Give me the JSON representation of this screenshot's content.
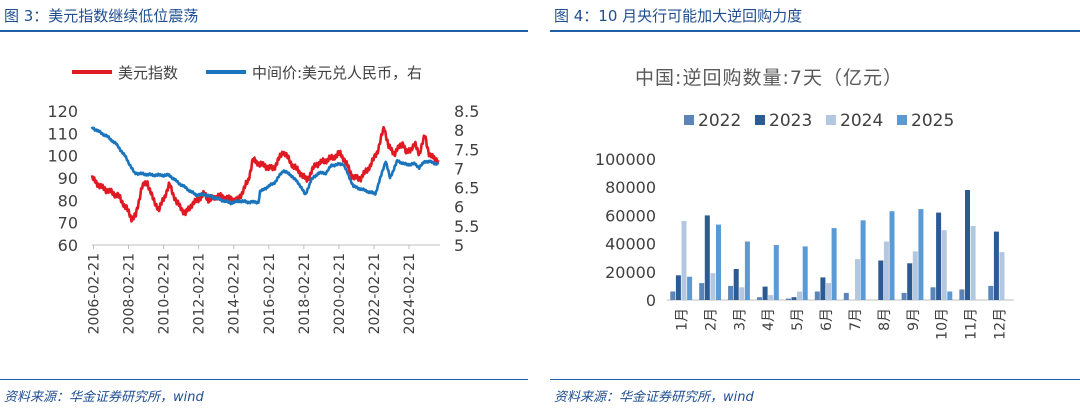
{
  "left": {
    "title": "图 3：美元指数继续低位震荡",
    "source": "资料来源：华金证券研究所，wind",
    "chart_data": {
      "type": "line",
      "legend_position": "top",
      "series": [
        {
          "name": "美元指数",
          "axis": "left",
          "color": "#e01a22",
          "points": [
            [
              "2006-01",
              90
            ],
            [
              "2006-07",
              86
            ],
            [
              "2007-01",
              84
            ],
            [
              "2007-07",
              82
            ],
            [
              "2008-01",
              76
            ],
            [
              "2008-04",
              72
            ],
            [
              "2008-07",
              73
            ],
            [
              "2008-11",
              86
            ],
            [
              "2009-03",
              88
            ],
            [
              "2009-07",
              80
            ],
            [
              "2009-11",
              76
            ],
            [
              "2010-06",
              87
            ],
            [
              "2010-11",
              79
            ],
            [
              "2011-05",
              74
            ],
            [
              "2011-09",
              78
            ],
            [
              "2012-01",
              80
            ],
            [
              "2012-06",
              83
            ],
            [
              "2012-09",
              80
            ],
            [
              "2013-03",
              82
            ],
            [
              "2013-09",
              81
            ],
            [
              "2014-05",
              80
            ],
            [
              "2014-12",
              89
            ],
            [
              "2015-03",
              98
            ],
            [
              "2015-09",
              96
            ],
            [
              "2016-05",
              94
            ],
            [
              "2016-12",
              102
            ],
            [
              "2017-06",
              96
            ],
            [
              "2017-12",
              92
            ],
            [
              "2018-04",
              89
            ],
            [
              "2018-10",
              96
            ],
            [
              "2019-09",
              99
            ],
            [
              "2020-03",
              101
            ],
            [
              "2020-05",
              99
            ],
            [
              "2020-12",
              90
            ],
            [
              "2021-05",
              90
            ],
            [
              "2021-12",
              96
            ],
            [
              "2022-05",
              103
            ],
            [
              "2022-09",
              113
            ],
            [
              "2022-12",
              104
            ],
            [
              "2023-04",
              101
            ],
            [
              "2023-10",
              106
            ],
            [
              "2023-12",
              101
            ],
            [
              "2024-06",
              105
            ],
            [
              "2024-09",
              101
            ],
            [
              "2025-01",
              109
            ],
            [
              "2025-04",
              100
            ],
            [
              "2025-10",
              98
            ]
          ]
        },
        {
          "name": "中间价:美元兑人民币，右",
          "axis": "right",
          "color": "#1b75bc",
          "points": [
            [
              "2006-01",
              8.07
            ],
            [
              "2006-12",
              7.82
            ],
            [
              "2007-06",
              7.62
            ],
            [
              "2007-12",
              7.3
            ],
            [
              "2008-06",
              6.88
            ],
            [
              "2009-06",
              6.83
            ],
            [
              "2010-06",
              6.82
            ],
            [
              "2010-12",
              6.63
            ],
            [
              "2011-06",
              6.47
            ],
            [
              "2011-12",
              6.31
            ],
            [
              "2012-06",
              6.32
            ],
            [
              "2013-06",
              6.17
            ],
            [
              "2013-12",
              6.1
            ],
            [
              "2014-06",
              6.15
            ],
            [
              "2014-12",
              6.12
            ],
            [
              "2015-07",
              6.12
            ],
            [
              "2015-08",
              6.39
            ],
            [
              "2015-12",
              6.49
            ],
            [
              "2016-06",
              6.63
            ],
            [
              "2016-12",
              6.95
            ],
            [
              "2017-06",
              6.8
            ],
            [
              "2017-12",
              6.53
            ],
            [
              "2018-03",
              6.3
            ],
            [
              "2018-07",
              6.7
            ],
            [
              "2018-12",
              6.88
            ],
            [
              "2019-05",
              6.88
            ],
            [
              "2019-09",
              7.08
            ],
            [
              "2020-05",
              7.12
            ],
            [
              "2020-12",
              6.53
            ],
            [
              "2021-06",
              6.45
            ],
            [
              "2021-12",
              6.37
            ],
            [
              "2022-03",
              6.34
            ],
            [
              "2022-06",
              6.7
            ],
            [
              "2022-10",
              7.2
            ],
            [
              "2023-01",
              6.75
            ],
            [
              "2023-06",
              7.2
            ],
            [
              "2023-12",
              7.1
            ],
            [
              "2024-06",
              7.12
            ],
            [
              "2024-09",
              7.02
            ],
            [
              "2025-01",
              7.19
            ],
            [
              "2025-06",
              7.16
            ],
            [
              "2025-10",
              7.1
            ]
          ]
        }
      ],
      "left_axis": {
        "ticks": [
          "120",
          "110",
          "100",
          "90",
          "80",
          "70",
          "60"
        ],
        "min": 60,
        "max": 120
      },
      "right_axis": {
        "ticks": [
          "8.5",
          "8",
          "7.5",
          "7",
          "6.5",
          "6",
          "5.5",
          "5"
        ],
        "min": 5,
        "max": 8.5
      },
      "x_ticks": [
        "2006-02-21",
        "2008-02-21",
        "2010-02-21",
        "2012-02-21",
        "2014-02-21",
        "2016-02-21",
        "2018-02-21",
        "2020-02-21",
        "2022-02-21",
        "2024-02-21"
      ]
    }
  },
  "right": {
    "title": "图 4：10 月央行可能加大逆回购力度",
    "source": "资料来源：华金证券研究所，wind",
    "chart_data": {
      "type": "bar",
      "title": "中国:逆回购数量:7天（亿元）",
      "legend_position": "top",
      "ylim": [
        0,
        100000
      ],
      "y_ticks": [
        "100000",
        "80000",
        "60000",
        "40000",
        "20000",
        "0"
      ],
      "categories": [
        "1月",
        "2月",
        "3月",
        "4月",
        "5月",
        "6月",
        "7月",
        "8月",
        "9月",
        "10月",
        "11月",
        "12月"
      ],
      "series": [
        {
          "name": "2022",
          "color": "#5b84b8",
          "values": [
            6000,
            12000,
            10000,
            2000,
            1000,
            6000,
            5000,
            0,
            5000,
            9000,
            7500,
            10000
          ]
        },
        {
          "name": "2023",
          "color": "#2c5a93",
          "values": [
            17500,
            60000,
            22000,
            9500,
            2000,
            16000,
            0,
            28000,
            26000,
            62000,
            78000,
            48500
          ]
        },
        {
          "name": "2024",
          "color": "#b4c7e0",
          "values": [
            56000,
            19000,
            9000,
            3500,
            6000,
            12000,
            29000,
            41500,
            34500,
            49500,
            52500,
            34000
          ]
        },
        {
          "name": "2025",
          "color": "#5b9bd5",
          "values": [
            16500,
            53500,
            41500,
            39000,
            38000,
            51000,
            56500,
            63000,
            64500,
            6000,
            0,
            0
          ]
        }
      ]
    }
  }
}
